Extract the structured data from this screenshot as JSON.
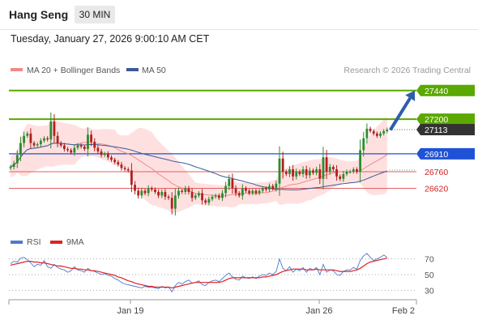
{
  "header": {
    "instrument": "Hang Seng",
    "timeframe": "30 MIN",
    "datetime": "Tuesday, January 27, 2026 9:00:10 AM CET"
  },
  "legend": {
    "ma20_label": "MA 20 + Bollinger Bands",
    "ma20_color": "#f08a8a",
    "ma50_label": "MA 50",
    "ma50_color": "#3a5a9a"
  },
  "credit": "Research © 2026 Trading Central",
  "rsi_legend": {
    "rsi_label": "RSI",
    "rsi_color": "#4a7bd0",
    "ma9_label": "9MA",
    "ma9_color": "#e02020"
  },
  "colors": {
    "up": "#2e8b2e",
    "down": "#b02020",
    "resistance": "#5aa800",
    "pivot": "#1f52d6",
    "support": "#e06060",
    "bands_fill": "#ffe0e0",
    "arrow": "#2f5da8"
  },
  "chart_data": [
    {
      "type": "candlestick",
      "title": "Hang Seng",
      "ylim": [
        26230,
        27520
      ],
      "x_ticks": [
        "Jan 19",
        "Jan 26",
        "Feb 2"
      ],
      "levels": [
        {
          "label": "27440",
          "value": 27440,
          "kind": "resistance"
        },
        {
          "label": "27200",
          "value": 27200,
          "kind": "resistance"
        },
        {
          "label": "27113",
          "value": 27113,
          "kind": "last"
        },
        {
          "label": "26910",
          "value": 26910,
          "kind": "pivot"
        },
        {
          "label": "26760",
          "value": 26760,
          "kind": "support"
        },
        {
          "label": "26620",
          "value": 26620,
          "kind": "support"
        }
      ],
      "arrow": {
        "from": 27110,
        "to": 27440,
        "direction": "up"
      },
      "closes": [
        26800,
        26830,
        26900,
        27000,
        27060,
        27080,
        27000,
        26980,
        26990,
        27020,
        27040,
        27030,
        27180,
        27060,
        27000,
        26980,
        26950,
        26940,
        26920,
        26960,
        26980,
        26970,
        26950,
        27070,
        27010,
        26960,
        26930,
        26900,
        26910,
        26880,
        26860,
        26840,
        26820,
        26790,
        26780,
        26770,
        26650,
        26600,
        26560,
        26600,
        26580,
        26620,
        26610,
        26590,
        26560,
        26590,
        26550,
        26540,
        26450,
        26560,
        26600,
        26590,
        26620,
        26590,
        26540,
        26560,
        26580,
        26520,
        26500,
        26530,
        26550,
        26560,
        26540,
        26580,
        26640,
        26700,
        26620,
        26580,
        26560,
        26620,
        26600,
        26580,
        26600,
        26580,
        26600,
        26620,
        26610,
        26640,
        26620,
        26660,
        26870,
        26760,
        26740,
        26780,
        26720,
        26760,
        26740,
        26780,
        26730,
        26770,
        26750,
        26780,
        26700,
        26880,
        26760,
        26800,
        26780,
        26720,
        26700,
        26740,
        26760,
        26760,
        26780,
        26760,
        26940,
        27040,
        27120,
        27100,
        27080,
        27060,
        27080,
        27100,
        27113
      ]
    },
    {
      "type": "line",
      "title": "RSI",
      "ylim": [
        20,
        80
      ],
      "y_ticks": [
        70,
        50,
        30
      ],
      "series": [
        {
          "name": "RSI",
          "values": [
            64,
            67,
            66,
            71,
            72,
            69,
            65,
            60,
            63,
            62,
            68,
            60,
            58,
            63,
            59,
            57,
            56,
            53,
            55,
            60,
            56,
            55,
            53,
            58,
            55,
            54,
            52,
            50,
            51,
            49,
            48,
            45,
            43,
            40,
            38,
            37,
            36,
            35,
            34,
            33,
            35,
            34,
            34,
            33,
            32,
            35,
            33,
            34,
            28,
            36,
            40,
            38,
            41,
            43,
            39,
            40,
            42,
            37,
            36,
            40,
            42,
            43,
            41,
            45,
            49,
            52,
            47,
            44,
            43,
            48,
            46,
            45,
            47,
            45,
            48,
            50,
            49,
            52,
            50,
            54,
            70,
            58,
            55,
            60,
            53,
            57,
            55,
            59,
            53,
            58,
            56,
            59,
            50,
            63,
            53,
            56,
            55,
            50,
            49,
            54,
            56,
            56,
            59,
            57,
            68,
            74,
            77,
            72,
            68,
            70,
            72,
            75,
            72
          ]
        },
        {
          "name": "9MA",
          "values": [
            62,
            63,
            64,
            65,
            66,
            67,
            67,
            66,
            66,
            65,
            65,
            64,
            63,
            62,
            61,
            61,
            60,
            59,
            58,
            58,
            57,
            57,
            56,
            56,
            55,
            55,
            54,
            53,
            52,
            51,
            50,
            49,
            47,
            46,
            44,
            42,
            41,
            39,
            38,
            37,
            36,
            35,
            35,
            34,
            34,
            34,
            34,
            34,
            33,
            34,
            35,
            36,
            37,
            38,
            39,
            40,
            40,
            40,
            40,
            40,
            40,
            40,
            40,
            41,
            43,
            45,
            46,
            46,
            46,
            46,
            46,
            46,
            46,
            46,
            46,
            47,
            47,
            48,
            49,
            50,
            52,
            54,
            55,
            56,
            57,
            57,
            57,
            57,
            56,
            56,
            56,
            57,
            56,
            56,
            56,
            56,
            56,
            55,
            54,
            54,
            54,
            54,
            55,
            56,
            58,
            61,
            64,
            66,
            67,
            68,
            69,
            70,
            71
          ]
        }
      ]
    }
  ]
}
